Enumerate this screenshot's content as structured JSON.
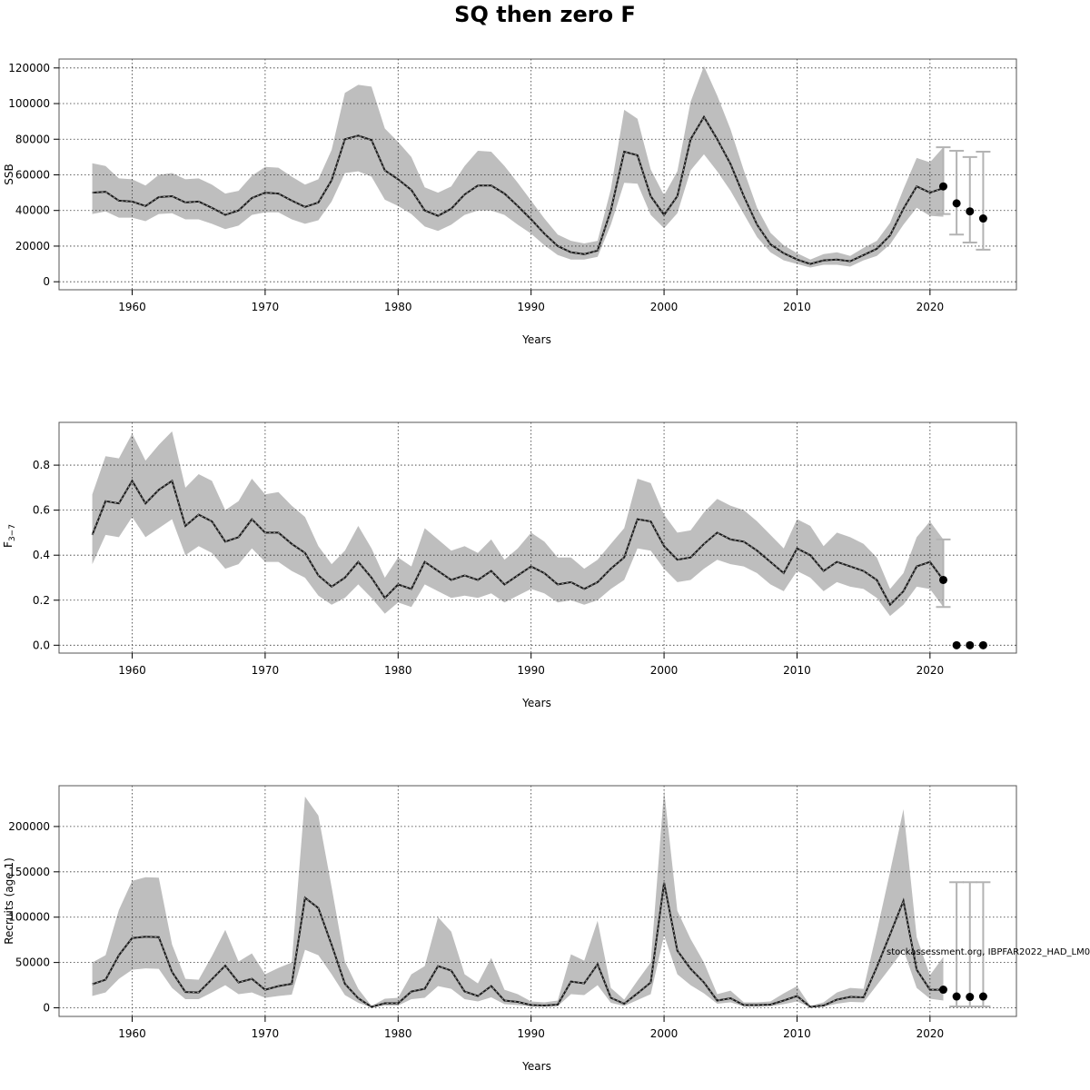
{
  "title": "SQ then zero F",
  "watermark": "stockassessment.org, IBPFAR2022_HAD_LM0",
  "colors": {
    "band": "#bebebe",
    "line": "#1a1a1a",
    "errorbar": "#b3b3b3",
    "grid": "#333333",
    "point": "#000000"
  },
  "chart_data": [
    {
      "type": "line",
      "ylabel": "SSB",
      "xlabel": "Years",
      "xlim": [
        1954.5,
        2026.5
      ],
      "ylim": [
        -4500,
        125000
      ],
      "xticks": [
        1960,
        1970,
        1980,
        1990,
        2000,
        2010,
        2020
      ],
      "yticks": [
        0,
        20000,
        40000,
        60000,
        80000,
        100000,
        120000
      ],
      "grid": true,
      "years": [
        1957,
        1958,
        1959,
        1960,
        1961,
        1962,
        1963,
        1964,
        1965,
        1966,
        1967,
        1968,
        1969,
        1970,
        1971,
        1972,
        1973,
        1974,
        1975,
        1976,
        1977,
        1978,
        1979,
        1980,
        1981,
        1982,
        1983,
        1984,
        1985,
        1986,
        1987,
        1988,
        1989,
        1990,
        1991,
        1992,
        1993,
        1994,
        1995,
        1996,
        1997,
        1998,
        1999,
        2000,
        2001,
        2002,
        2003,
        2004,
        2005,
        2006,
        2007,
        2008,
        2009,
        2010,
        2011,
        2012,
        2013,
        2014,
        2015,
        2016,
        2017,
        2018,
        2019,
        2020,
        2021
      ],
      "estimate": [
        50000,
        50500,
        45500,
        45000,
        42500,
        47500,
        48000,
        44500,
        45000,
        41500,
        37500,
        40000,
        47000,
        50000,
        49500,
        45500,
        42000,
        44500,
        57000,
        80000,
        82000,
        79500,
        62500,
        57500,
        51500,
        40000,
        37000,
        41000,
        49000,
        54000,
        54000,
        49500,
        42500,
        35000,
        27000,
        20000,
        16500,
        15500,
        17500,
        40000,
        73000,
        71000,
        48000,
        37500,
        48000,
        80000,
        92500,
        80000,
        66000,
        48000,
        32000,
        21000,
        16000,
        12500,
        10000,
        12000,
        12500,
        11500,
        15000,
        18500,
        26000,
        41000,
        53500,
        50000,
        52500
      ],
      "upper": [
        66500,
        65000,
        58000,
        57500,
        54000,
        60000,
        61000,
        57500,
        58000,
        54500,
        49500,
        51000,
        59500,
        64500,
        64000,
        59000,
        54500,
        57500,
        74000,
        106000,
        110500,
        109500,
        86000,
        78500,
        70000,
        53000,
        50000,
        53500,
        65000,
        73500,
        73000,
        65000,
        55500,
        45500,
        35500,
        26500,
        23000,
        21500,
        23000,
        52000,
        96500,
        91500,
        63000,
        48500,
        62000,
        101000,
        121000,
        104500,
        85500,
        62500,
        41500,
        27500,
        20500,
        16000,
        12500,
        15500,
        16500,
        14500,
        19000,
        23000,
        33000,
        52000,
        69500,
        67000,
        75500
      ],
      "lower": [
        38000,
        39500,
        36000,
        36000,
        34000,
        38000,
        38500,
        35000,
        35000,
        32500,
        29500,
        31500,
        37500,
        39000,
        39000,
        35000,
        32500,
        34500,
        45000,
        61000,
        62000,
        59000,
        46000,
        42500,
        38000,
        31000,
        28500,
        32000,
        37500,
        40000,
        40000,
        37500,
        32000,
        27000,
        20500,
        15000,
        12500,
        12500,
        14000,
        32000,
        55500,
        55000,
        37500,
        30000,
        38500,
        62500,
        71500,
        62000,
        51000,
        38000,
        25000,
        16500,
        12000,
        10000,
        8000,
        9500,
        9500,
        8500,
        12000,
        14500,
        21000,
        32000,
        41500,
        37000,
        36500
      ],
      "forecast": {
        "years": [
          2021,
          2022,
          2023,
          2024
        ],
        "median": [
          53500,
          44000,
          39500,
          35500
        ],
        "upper": [
          75500,
          73500,
          70000,
          73000
        ],
        "lower": [
          38000,
          26500,
          22000,
          18000
        ]
      }
    },
    {
      "type": "line",
      "ylabel_main": "F",
      "ylabel_sub": "3−7",
      "xlabel": "Years",
      "xlim": [
        1954.5,
        2026.5
      ],
      "ylim": [
        -0.035,
        0.99
      ],
      "xticks": [
        1960,
        1970,
        1980,
        1990,
        2000,
        2010,
        2020
      ],
      "yticks": [
        "0.0",
        "0.2",
        "0.4",
        "0.6",
        "0.8"
      ],
      "grid": true,
      "years": [
        1957,
        1958,
        1959,
        1960,
        1961,
        1962,
        1963,
        1964,
        1965,
        1966,
        1967,
        1968,
        1969,
        1970,
        1971,
        1972,
        1973,
        1974,
        1975,
        1976,
        1977,
        1978,
        1979,
        1980,
        1981,
        1982,
        1983,
        1984,
        1985,
        1986,
        1987,
        1988,
        1989,
        1990,
        1991,
        1992,
        1993,
        1994,
        1995,
        1996,
        1997,
        1998,
        1999,
        2000,
        2001,
        2002,
        2003,
        2004,
        2005,
        2006,
        2007,
        2008,
        2009,
        2010,
        2011,
        2012,
        2013,
        2014,
        2015,
        2016,
        2017,
        2018,
        2019,
        2020,
        2021
      ],
      "estimate": [
        0.49,
        0.64,
        0.63,
        0.73,
        0.63,
        0.69,
        0.73,
        0.53,
        0.58,
        0.55,
        0.46,
        0.48,
        0.56,
        0.5,
        0.5,
        0.45,
        0.41,
        0.31,
        0.26,
        0.3,
        0.37,
        0.3,
        0.21,
        0.27,
        0.25,
        0.37,
        0.33,
        0.29,
        0.31,
        0.29,
        0.33,
        0.27,
        0.31,
        0.35,
        0.32,
        0.27,
        0.28,
        0.25,
        0.28,
        0.34,
        0.39,
        0.56,
        0.55,
        0.44,
        0.38,
        0.39,
        0.45,
        0.5,
        0.47,
        0.46,
        0.42,
        0.37,
        0.32,
        0.43,
        0.4,
        0.33,
        0.37,
        0.35,
        0.33,
        0.29,
        0.18,
        0.24,
        0.35,
        0.37,
        0.29
      ],
      "upper": [
        0.67,
        0.84,
        0.83,
        0.94,
        0.82,
        0.89,
        0.95,
        0.7,
        0.76,
        0.73,
        0.6,
        0.64,
        0.74,
        0.67,
        0.68,
        0.62,
        0.57,
        0.44,
        0.36,
        0.42,
        0.53,
        0.43,
        0.3,
        0.39,
        0.35,
        0.52,
        0.47,
        0.42,
        0.44,
        0.41,
        0.47,
        0.38,
        0.43,
        0.5,
        0.46,
        0.39,
        0.39,
        0.34,
        0.38,
        0.45,
        0.52,
        0.74,
        0.72,
        0.58,
        0.5,
        0.51,
        0.59,
        0.65,
        0.62,
        0.6,
        0.55,
        0.49,
        0.43,
        0.56,
        0.53,
        0.44,
        0.5,
        0.48,
        0.45,
        0.39,
        0.25,
        0.32,
        0.48,
        0.55,
        0.47
      ],
      "lower": [
        0.36,
        0.49,
        0.48,
        0.57,
        0.48,
        0.52,
        0.56,
        0.4,
        0.44,
        0.41,
        0.34,
        0.36,
        0.43,
        0.37,
        0.37,
        0.33,
        0.3,
        0.22,
        0.18,
        0.21,
        0.27,
        0.21,
        0.14,
        0.19,
        0.17,
        0.27,
        0.24,
        0.21,
        0.22,
        0.21,
        0.23,
        0.19,
        0.22,
        0.25,
        0.23,
        0.19,
        0.2,
        0.18,
        0.2,
        0.25,
        0.29,
        0.43,
        0.42,
        0.34,
        0.28,
        0.29,
        0.34,
        0.38,
        0.36,
        0.35,
        0.32,
        0.27,
        0.24,
        0.33,
        0.3,
        0.24,
        0.28,
        0.26,
        0.25,
        0.21,
        0.13,
        0.18,
        0.26,
        0.25,
        0.17
      ],
      "forecast": {
        "years": [
          2021,
          2022,
          2023,
          2024
        ],
        "median": [
          0.29,
          0.0,
          0.0,
          0.0
        ],
        "upper": [
          0.47,
          null,
          null,
          null
        ],
        "lower": [
          0.17,
          null,
          null,
          null
        ]
      }
    },
    {
      "type": "line",
      "ylabel": "Recruits (age 1)",
      "xlabel": "Years",
      "xlim": [
        1954.5,
        2026.5
      ],
      "ylim": [
        -9500,
        245000
      ],
      "xticks": [
        1960,
        1970,
        1980,
        1990,
        2000,
        2010,
        2020
      ],
      "yticks": [
        0,
        50000,
        100000,
        150000,
        200000
      ],
      "grid": true,
      "years": [
        1957,
        1958,
        1959,
        1960,
        1961,
        1962,
        1963,
        1964,
        1965,
        1966,
        1967,
        1968,
        1969,
        1970,
        1971,
        1972,
        1973,
        1974,
        1975,
        1976,
        1977,
        1978,
        1979,
        1980,
        1981,
        1982,
        1983,
        1984,
        1985,
        1986,
        1987,
        1988,
        1989,
        1990,
        1991,
        1992,
        1993,
        1994,
        1995,
        1996,
        1997,
        1998,
        1999,
        2000,
        2001,
        2002,
        2003,
        2004,
        2005,
        2006,
        2007,
        2008,
        2009,
        2010,
        2011,
        2012,
        2013,
        2014,
        2015,
        2016,
        2017,
        2018,
        2019,
        2020,
        2021
      ],
      "estimate": [
        26000,
        31000,
        58000,
        77000,
        78500,
        78000,
        39500,
        17500,
        17000,
        31500,
        46500,
        28000,
        32000,
        20000,
        24000,
        26500,
        121500,
        110000,
        69500,
        26500,
        10500,
        1000,
        5000,
        5000,
        18000,
        21000,
        46000,
        41000,
        18000,
        13000,
        24000,
        8000,
        6500,
        3000,
        2500,
        3500,
        29000,
        27000,
        48000,
        11000,
        4500,
        16000,
        28000,
        138000,
        63000,
        43000,
        28000,
        8000,
        10500,
        3000,
        3000,
        3500,
        8000,
        13000,
        1000,
        2500,
        9000,
        12000,
        11500,
        45000,
        81000,
        118000,
        42000,
        20000,
        20000
      ],
      "upper": [
        50000,
        58000,
        108000,
        140000,
        144000,
        143500,
        70000,
        32000,
        31000,
        57000,
        86000,
        51000,
        60000,
        37000,
        44000,
        50000,
        233000,
        212000,
        133000,
        51000,
        21000,
        2000,
        10000,
        11000,
        37000,
        46000,
        100000,
        84000,
        37000,
        27000,
        55000,
        20000,
        15000,
        7000,
        6000,
        8000,
        59000,
        52000,
        96000,
        22000,
        9000,
        30000,
        50000,
        240000,
        107000,
        76000,
        50000,
        15000,
        19000,
        6000,
        6000,
        7000,
        16000,
        24000,
        2000,
        6000,
        17000,
        22000,
        21000,
        84000,
        150000,
        219000,
        78000,
        36000,
        56000
      ],
      "lower": [
        13000,
        17000,
        32000,
        42000,
        43500,
        43000,
        22000,
        9500,
        9500,
        17000,
        25000,
        15000,
        17000,
        11000,
        13000,
        14500,
        64000,
        58000,
        37000,
        14000,
        5500,
        500,
        2500,
        2500,
        9500,
        11000,
        24000,
        21000,
        9500,
        7000,
        11500,
        4000,
        3000,
        1500,
        1200,
        1700,
        15000,
        14000,
        25000,
        5500,
        2000,
        8500,
        15000,
        80000,
        37000,
        25000,
        16000,
        4500,
        6000,
        1500,
        1500,
        1800,
        4000,
        7000,
        500,
        1200,
        4500,
        6500,
        6000,
        25000,
        44000,
        64000,
        22000,
        10000,
        8000
      ],
      "forecast": {
        "years": [
          2021,
          2022,
          2023,
          2024
        ],
        "median": [
          20000,
          12500,
          12000,
          12500
        ],
        "upper": [
          null,
          138500,
          138500,
          138500
        ],
        "lower": [
          null,
          1500,
          1500,
          1500
        ]
      }
    }
  ]
}
